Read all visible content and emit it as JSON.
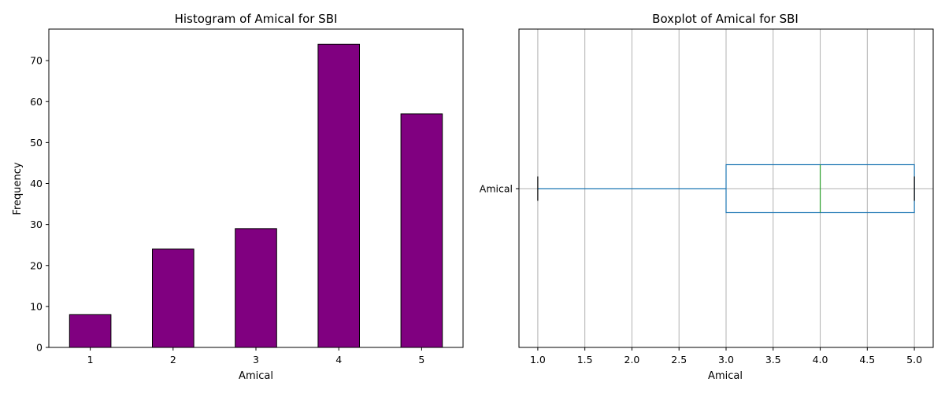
{
  "chart_data": [
    {
      "type": "bar",
      "title": "Histogram of Amical for SBI",
      "xlabel": "Amical",
      "ylabel": "Frequency",
      "categories": [
        "1",
        "2",
        "3",
        "4",
        "5"
      ],
      "values": [
        8,
        24,
        29,
        74,
        57
      ],
      "ylim": [
        0,
        77.7
      ],
      "yticks": [
        0,
        10,
        20,
        30,
        40,
        50,
        60,
        70
      ],
      "grid": false,
      "colors": {
        "bar": "#800080",
        "edge": "#000000"
      }
    },
    {
      "type": "boxplot",
      "title": "Boxplot of Amical for SBI",
      "xlabel": "Amical",
      "category": "Amical",
      "orientation": "horizontal",
      "stats": {
        "min": 1.0,
        "q1": 3.0,
        "median": 4.0,
        "q3": 5.0,
        "max": 5.0
      },
      "xlim": [
        0.8,
        5.2
      ],
      "xticks": [
        "1.0",
        "1.5",
        "2.0",
        "2.5",
        "3.0",
        "3.5",
        "4.0",
        "4.5",
        "5.0"
      ],
      "grid": true,
      "colors": {
        "box": "#1f77b4",
        "median": "#2ca02c",
        "caps": "#000000",
        "grid": "#b0b0b0"
      }
    }
  ]
}
